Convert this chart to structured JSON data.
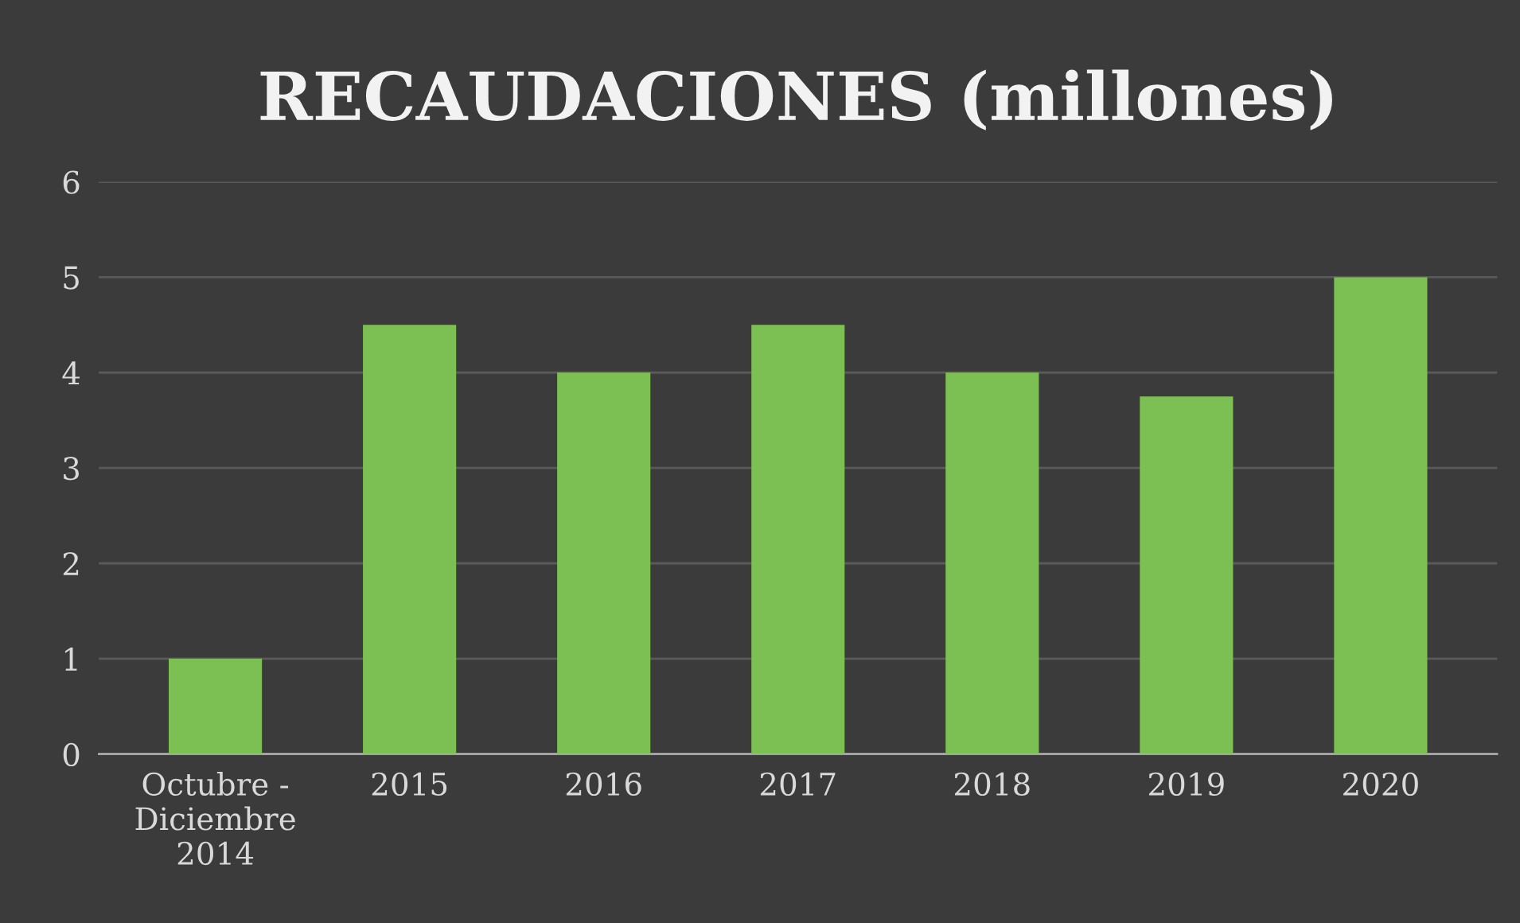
{
  "chart_data": {
    "type": "bar",
    "title": "RECAUDACIONES (millones)",
    "categories": [
      "Octubre -\nDiciembre\n2014",
      "2015",
      "2016",
      "2017",
      "2018",
      "2019",
      "2020"
    ],
    "values": [
      1,
      4.5,
      4,
      4.5,
      4,
      3.75,
      5
    ],
    "color": "#7cbf52",
    "ylim": [
      0,
      6
    ],
    "yticks": [
      0,
      1,
      2,
      3,
      4,
      5,
      6
    ],
    "grid": "y",
    "legend": false
  }
}
